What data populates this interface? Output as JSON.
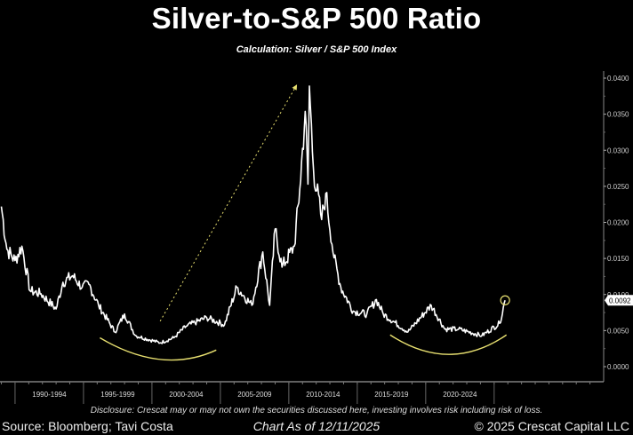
{
  "chart_data": {
    "type": "line",
    "title": "Silver-to-S&P 500 Ratio",
    "subtitle": "Calculation: Silver / S&P 500 Index",
    "xlabel": "",
    "ylabel": "",
    "xlim": [
      1988.9,
      2033.0
    ],
    "ylim": [
      0.0,
      0.04
    ],
    "y_ticks": [
      "0.0000",
      "0.0050",
      "0.0100",
      "0.0150",
      "0.0200",
      "0.0250",
      "0.0300",
      "0.0350",
      "0.0400"
    ],
    "y_tick_values": [
      0,
      0.005,
      0.01,
      0.015,
      0.02,
      0.025,
      0.03,
      0.035,
      0.04
    ],
    "y_axis_position": "right",
    "x_periods": [
      {
        "label": "1990-1994",
        "start": 1990,
        "end": 1995
      },
      {
        "label": "1995-1999",
        "start": 1995,
        "end": 2000
      },
      {
        "label": "2000-2004",
        "start": 2000,
        "end": 2005
      },
      {
        "label": "2005-2009",
        "start": 2005,
        "end": 2010
      },
      {
        "label": "2010-2014",
        "start": 2010,
        "end": 2015
      },
      {
        "label": "2015-2019",
        "start": 2015,
        "end": 2020
      },
      {
        "label": "2020-2024",
        "start": 2020,
        "end": 2025
      }
    ],
    "grid": false,
    "series": [
      {
        "color": "#ffffff",
        "x": [
          1989.0,
          1989.4,
          1990.0,
          1990.5,
          1991.1,
          1991.9,
          1993.0,
          1993.5,
          1994.2,
          1994.9,
          1995.4,
          1996.1,
          1997.3,
          1998.0,
          1998.8,
          2000.6,
          2001.6,
          2002.5,
          2004.0,
          2005.3,
          2006.2,
          2007.3,
          2008.1,
          2008.6,
          2009.0,
          2009.5,
          2010.4,
          2010.8,
          2011.2,
          2011.4,
          2011.5,
          2011.8,
          2012.4,
          2012.7,
          2013.3,
          2013.8,
          2014.7,
          2015.7,
          2016.4,
          2016.9,
          2018.7,
          2020.4,
          2021.4,
          2022.4,
          2024.1,
          2025.4,
          2025.8
        ],
        "y": [
          0.0222,
          0.0163,
          0.0147,
          0.0167,
          0.0105,
          0.0101,
          0.008,
          0.0117,
          0.0126,
          0.011,
          0.0114,
          0.0085,
          0.0048,
          0.0073,
          0.0043,
          0.0033,
          0.004,
          0.0056,
          0.0068,
          0.0058,
          0.011,
          0.0085,
          0.0159,
          0.0085,
          0.0191,
          0.0138,
          0.0167,
          0.0246,
          0.0354,
          0.0253,
          0.0389,
          0.0274,
          0.0204,
          0.024,
          0.0151,
          0.011,
          0.0077,
          0.0073,
          0.0093,
          0.0073,
          0.0048,
          0.0085,
          0.0052,
          0.0052,
          0.0043,
          0.006,
          0.0092
        ]
      }
    ],
    "last_value_label": "0.0092",
    "annotations": {
      "accent_color": "#e8e070",
      "arrow": {
        "from": [
          2000.6,
          0.0063
        ],
        "to": [
          2010.5,
          0.0388
        ],
        "style": "dotted"
      },
      "arcs": [
        {
          "from": [
            1996.2,
            0.004
          ],
          "bottom": [
            2000.6,
            0.001
          ],
          "to": [
            2004.7,
            0.0023
          ]
        },
        {
          "from": [
            2017.4,
            0.0044
          ],
          "bottom": [
            2021.7,
            0.0017
          ],
          "to": [
            2025.9,
            0.0044
          ]
        }
      ],
      "circle_at": [
        2025.8,
        0.0092
      ]
    }
  },
  "footer": {
    "disclosure": "Disclosure: Crescat may or may not own the securities discussed here, investing involves risk including risk of loss.",
    "source": "Source: Bloomberg; Tavi Costa",
    "as_of": "Chart As of 12/11/2025",
    "copyright": "© 2025 Crescat Capital LLC"
  }
}
